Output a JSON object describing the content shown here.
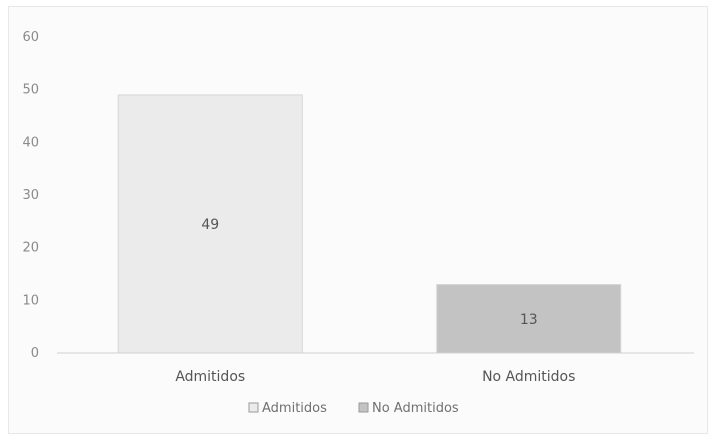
{
  "chart_data": {
    "type": "bar",
    "categories": [
      "Admitidos",
      "No Admitidos"
    ],
    "values": [
      49,
      13
    ],
    "data_labels": [
      "49",
      "13"
    ],
    "colors": [
      "#ebebeb",
      "#c3c3c3"
    ],
    "title": "",
    "xlabel": "",
    "ylabel": "",
    "ylim": [
      0,
      60
    ],
    "yticks": [
      0,
      10,
      20,
      30,
      40,
      50,
      60
    ],
    "grid": false,
    "legend": {
      "placement": "bottom",
      "entries": [
        {
          "name": "Admitidos",
          "color": "#ebebeb"
        },
        {
          "name": "No Admitidos",
          "color": "#c3c3c3"
        }
      ]
    }
  }
}
